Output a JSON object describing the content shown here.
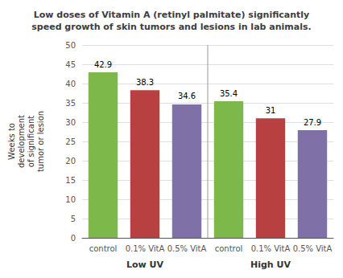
{
  "chart_data": {
    "type": "bar",
    "title": "Low doses of Vitamin A (retinyl palmitate) significantly\nspeed growth of skin tumors and lesions in lab animals.",
    "ylabel": "Weeks to\ndevelopment\nof significant\ntumor or lesion",
    "categories": [
      "control",
      "0.1% VitA",
      "0.5% VitA",
      "control",
      "0.1% VitA",
      "0.5% VitA"
    ],
    "values": [
      42.9,
      38.3,
      34.6,
      35.4,
      31,
      27.9
    ],
    "colors": [
      "#7db84a",
      "#b84040",
      "#8070a8",
      "#7db84a",
      "#b84040",
      "#8070a8"
    ],
    "groups": [
      "Low UV",
      "High UV"
    ],
    "ylim": [
      0,
      50
    ],
    "yticks": [
      0,
      5,
      10,
      15,
      20,
      25,
      30,
      35,
      40,
      45,
      50
    ],
    "grid": true,
    "data_labels": true
  }
}
